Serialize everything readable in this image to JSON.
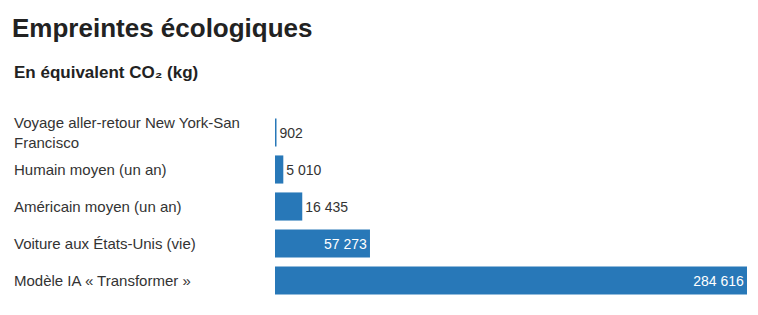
{
  "chart_data": {
    "type": "bar",
    "title": "Empreintes écologiques",
    "subtitle": "En équivalent CO₂ (kg)",
    "orientation": "horizontal",
    "categories": [
      "Voyage aller-retour New York-San Francisco",
      "Humain moyen (un an)",
      "Américain moyen (un an)",
      "Voiture aux États-Unis (vie)",
      "Modèle IA « Transformer »"
    ],
    "values": [
      902,
      5010,
      16435,
      57273,
      284616
    ],
    "value_labels": [
      "902",
      "5 010",
      "16 435",
      "57 273",
      "284 616"
    ],
    "color": "#2878b8",
    "xlim": [
      0,
      284616
    ],
    "data_labels": true,
    "tick_labels": "y",
    "grid": false
  }
}
